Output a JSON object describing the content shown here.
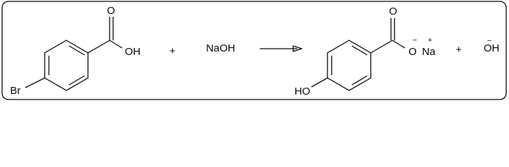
{
  "reaction": {
    "reactant": {
      "carbonyl_oxygen": "O",
      "hydroxyl": "OH",
      "substituent": "Br"
    },
    "plus_1": "+",
    "reagent": "NaOH",
    "product": {
      "carbonyl_oxygen": "O",
      "oxide": "O",
      "oxide_charge": "−",
      "counter_ion": "Na",
      "counter_ion_charge": "+",
      "substituent": "HO"
    },
    "plus_2": "+",
    "byproduct": {
      "charge": "−",
      "formula": "OH"
    }
  }
}
